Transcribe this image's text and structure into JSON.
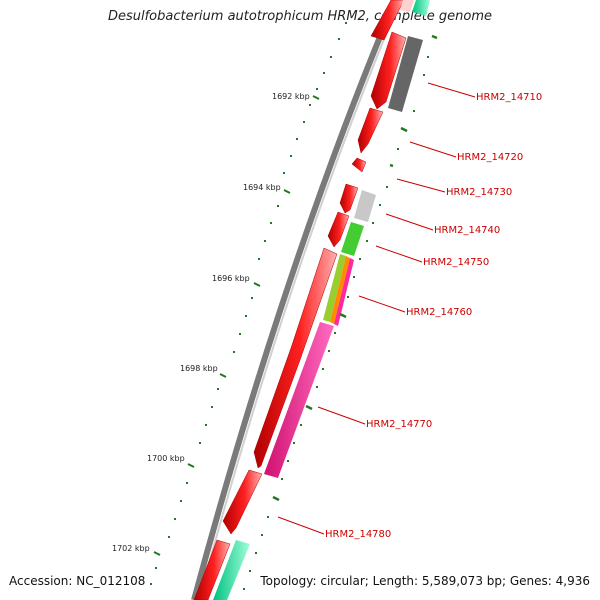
{
  "title": "Desulfobacterium autotrophicum HRM2, complete genome",
  "footer": {
    "accession": "Accession: NC_012108",
    "topology": "Topology: circular; Length: 5,589,073 bp; Genes: 4,936"
  },
  "scale_ticks": [
    "1692 kbp",
    "1694 kbp",
    "1696 kbp",
    "1698 kbp",
    "1700 kbp",
    "1702 kbp"
  ],
  "gene_labels": [
    "HRM2_14710",
    "HRM2_14720",
    "HRM2_14730",
    "HRM2_14740",
    "HRM2_14750",
    "HRM2_14760",
    "HRM2_14770",
    "HRM2_14780"
  ],
  "colors": {
    "gene_forward": "#ee1111",
    "cog_gray": "#666666",
    "cog_light_gray": "#c8c8c8",
    "cog_green": "#44cc33",
    "cog_magenta": "#ff2a99",
    "cog_mint": "#22e0a0",
    "label_red": "#cc0000",
    "tick_green": "#227722",
    "backbone": "#888888"
  }
}
